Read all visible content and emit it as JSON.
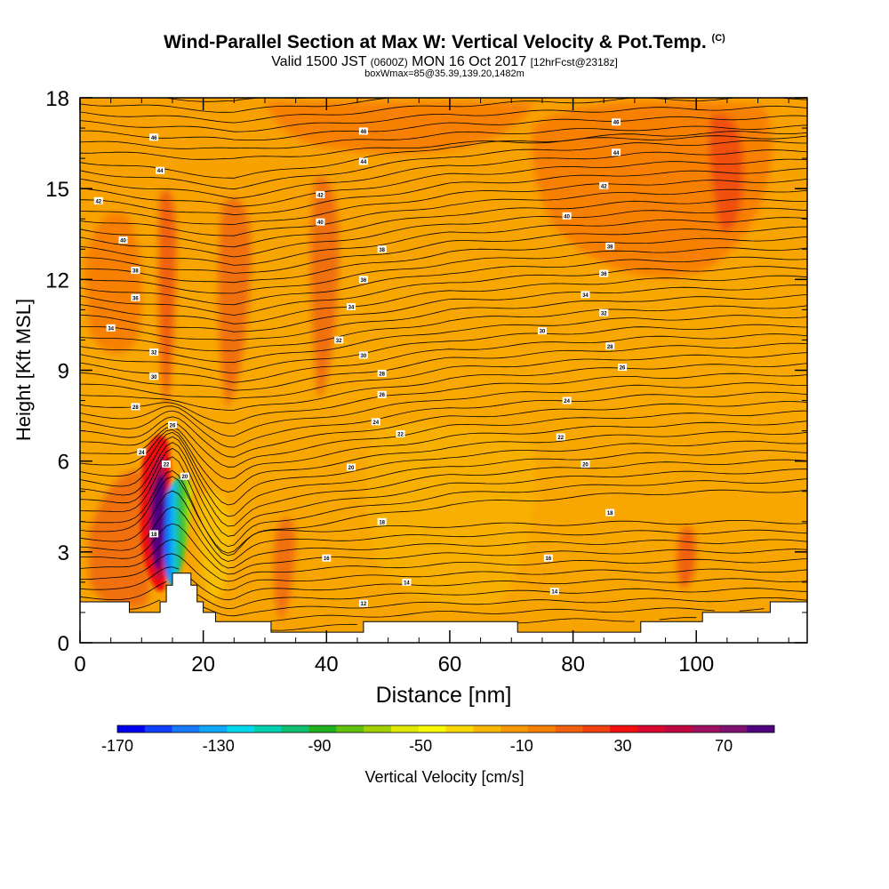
{
  "title": {
    "main": "Wind-Parallel Section at Max W: Vertical Velocity & Pot.Temp.",
    "copyright": "(C)",
    "valid_prefix": "Valid 1500 JST",
    "valid_utc": "(0600Z)",
    "valid_date": "MON 16 Oct 2017",
    "forecast": "[12hrFcst@2318z]",
    "box_info": "boxWmax=85@35.39,139.20,1482m"
  },
  "chart_data": {
    "type": "heatmap",
    "xlabel": "Distance [nm]",
    "ylabel": "Height [Kft MSL]",
    "xlim": [
      0,
      118
    ],
    "ylim": [
      0,
      18
    ],
    "x_ticks": [
      0,
      20,
      40,
      60,
      80,
      100
    ],
    "y_ticks": [
      0,
      3,
      6,
      9,
      12,
      15,
      18
    ],
    "colorbar": {
      "label": "Vertical Velocity [cm/s]",
      "min": -170,
      "max": 90,
      "step": 10,
      "tick_values": [
        -170,
        -130,
        -90,
        -50,
        -10,
        30,
        70
      ],
      "colors": [
        "#0000f0",
        "#1040ff",
        "#1878ff",
        "#10a8ff",
        "#00d8f0",
        "#00d0b0",
        "#10c070",
        "#20b020",
        "#60c010",
        "#a0d000",
        "#e0e800",
        "#f8f800",
        "#f8d800",
        "#f8b800",
        "#f89800",
        "#f88000",
        "#f06010",
        "#f04010",
        "#f01010",
        "#d80830",
        "#c00840",
        "#a01060",
        "#801070",
        "#500080"
      ]
    },
    "terrain_profile": [
      [
        0,
        1.35
      ],
      [
        3,
        1.35
      ],
      [
        8,
        1.35
      ],
      [
        8,
        1.0
      ],
      [
        13,
        1.0
      ],
      [
        13,
        1.35
      ],
      [
        14,
        1.35
      ],
      [
        14,
        1.9
      ],
      [
        15,
        1.9
      ],
      [
        15,
        2.3
      ],
      [
        18,
        2.3
      ],
      [
        18,
        1.9
      ],
      [
        19,
        1.9
      ],
      [
        19,
        1.35
      ],
      [
        20,
        1.35
      ],
      [
        20,
        1.0
      ],
      [
        22,
        1.0
      ],
      [
        22,
        0.7
      ],
      [
        31,
        0.7
      ],
      [
        31,
        0.35
      ],
      [
        46,
        0.35
      ],
      [
        46,
        0.7
      ],
      [
        71,
        0.7
      ],
      [
        71,
        0.35
      ],
      [
        91,
        0.35
      ],
      [
        91,
        0.7
      ],
      [
        101,
        0.7
      ],
      [
        101,
        1.0
      ],
      [
        112,
        1.0
      ],
      [
        112,
        1.35
      ],
      [
        118,
        1.35
      ]
    ],
    "theta_labels": [
      {
        "text": "46",
        "x": 12,
        "y": 16.7
      },
      {
        "text": "44",
        "x": 13,
        "y": 15.6
      },
      {
        "text": "42",
        "x": 3,
        "y": 14.6
      },
      {
        "text": "40",
        "x": 7,
        "y": 13.3
      },
      {
        "text": "38",
        "x": 9,
        "y": 12.3
      },
      {
        "text": "36",
        "x": 9,
        "y": 11.4
      },
      {
        "text": "34",
        "x": 5,
        "y": 10.4
      },
      {
        "text": "32",
        "x": 12,
        "y": 9.6
      },
      {
        "text": "30",
        "x": 12,
        "y": 8.8
      },
      {
        "text": "28",
        "x": 9,
        "y": 7.8
      },
      {
        "text": "26",
        "x": 15,
        "y": 7.2
      },
      {
        "text": "24",
        "x": 10,
        "y": 6.3
      },
      {
        "text": "22",
        "x": 14,
        "y": 5.9
      },
      {
        "text": "20",
        "x": 17,
        "y": 5.5
      },
      {
        "text": "18",
        "x": 12,
        "y": 3.6
      },
      {
        "text": "46",
        "x": 46,
        "y": 16.9
      },
      {
        "text": "44",
        "x": 46,
        "y": 15.9
      },
      {
        "text": "42",
        "x": 39,
        "y": 14.8
      },
      {
        "text": "40",
        "x": 39,
        "y": 13.9
      },
      {
        "text": "38",
        "x": 49,
        "y": 13.0
      },
      {
        "text": "36",
        "x": 46,
        "y": 12.0
      },
      {
        "text": "34",
        "x": 44,
        "y": 11.1
      },
      {
        "text": "32",
        "x": 42,
        "y": 10.0
      },
      {
        "text": "30",
        "x": 46,
        "y": 9.5
      },
      {
        "text": "28",
        "x": 49,
        "y": 8.9
      },
      {
        "text": "26",
        "x": 49,
        "y": 8.2
      },
      {
        "text": "24",
        "x": 48,
        "y": 7.3
      },
      {
        "text": "22",
        "x": 52,
        "y": 6.9
      },
      {
        "text": "20",
        "x": 44,
        "y": 5.8
      },
      {
        "text": "18",
        "x": 49,
        "y": 4.0
      },
      {
        "text": "16",
        "x": 40,
        "y": 2.8
      },
      {
        "text": "14",
        "x": 53,
        "y": 2.0
      },
      {
        "text": "12",
        "x": 46,
        "y": 1.3
      },
      {
        "text": "46",
        "x": 87,
        "y": 17.2
      },
      {
        "text": "44",
        "x": 87,
        "y": 16.2
      },
      {
        "text": "42",
        "x": 85,
        "y": 15.1
      },
      {
        "text": "40",
        "x": 79,
        "y": 14.1
      },
      {
        "text": "38",
        "x": 86,
        "y": 13.1
      },
      {
        "text": "36",
        "x": 85,
        "y": 12.2
      },
      {
        "text": "34",
        "x": 82,
        "y": 11.5
      },
      {
        "text": "32",
        "x": 85,
        "y": 10.9
      },
      {
        "text": "30",
        "x": 75,
        "y": 10.3
      },
      {
        "text": "28",
        "x": 86,
        "y": 9.8
      },
      {
        "text": "26",
        "x": 88,
        "y": 9.1
      },
      {
        "text": "24",
        "x": 79,
        "y": 8.0
      },
      {
        "text": "22",
        "x": 78,
        "y": 6.8
      },
      {
        "text": "20",
        "x": 82,
        "y": 5.9
      },
      {
        "text": "18",
        "x": 86,
        "y": 4.3
      },
      {
        "text": "16",
        "x": 76,
        "y": 2.8
      },
      {
        "text": "14",
        "x": 77,
        "y": 1.7
      }
    ]
  }
}
